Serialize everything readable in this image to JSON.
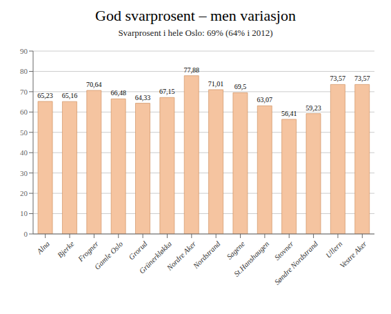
{
  "chart_data": {
    "type": "bar",
    "title": "God svarprosent – men variasjon",
    "subtitle": "Svarprosent i hele Oslo: 69% (64% i 2012)",
    "categories": [
      "Alna",
      "Bjerke",
      "Frogner",
      "Gamle Oslo",
      "Grorud",
      "Grünerkløkka",
      "Nordre Aker",
      "Nordstrand",
      "Sagene",
      "St.Hanshaugen",
      "Stovner",
      "Søndre Nordstrand",
      "Ullern",
      "Vestre Aker"
    ],
    "values": [
      65.23,
      65.16,
      70.64,
      66.48,
      64.33,
      67.15,
      77.88,
      71.01,
      69.5,
      63.07,
      56.41,
      59.23,
      73.57,
      73.57
    ],
    "value_labels": [
      "65,23",
      "65,16",
      "70,64",
      "66,48",
      "64,33",
      "67,15",
      "77,88",
      "71,01",
      "69,5",
      "63,07",
      "56,41",
      "59,23",
      "73,57",
      "73,57"
    ],
    "color": "#F5C4A0",
    "ylim": [
      0,
      90
    ],
    "yticks": [
      0,
      10,
      20,
      30,
      40,
      50,
      60,
      70,
      80,
      90
    ],
    "grid": true,
    "data_labels": true
  }
}
